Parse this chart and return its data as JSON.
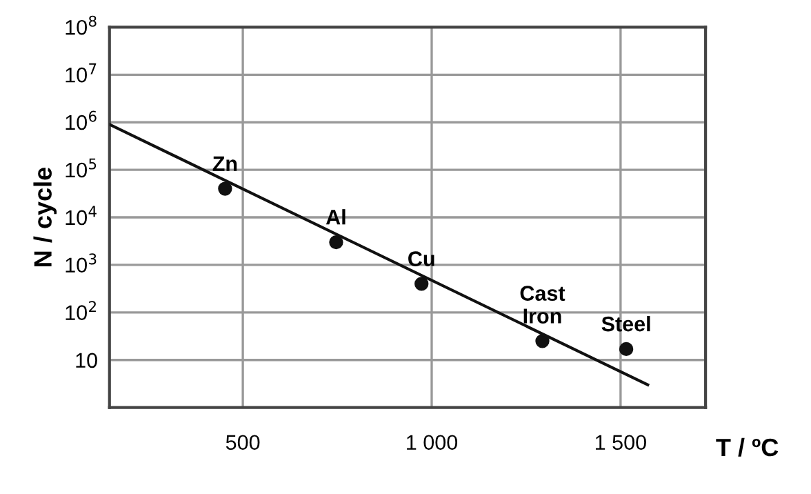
{
  "chart_data": {
    "type": "scatter",
    "xlabel": "T / ºC",
    "ylabel": "N / cycle",
    "x": [
      453,
      747,
      973,
      1293,
      1515
    ],
    "series": [
      {
        "color": "#111111",
        "values": [
          40000,
          3000,
          400,
          25,
          17
        ],
        "marker": "circle"
      },
      {
        "type": "line",
        "color": "#111111",
        "x": [
          147,
          1572
        ],
        "values": [
          900000,
          3
        ],
        "marker": "none",
        "line_style": "solid"
      }
    ],
    "annotations": [
      {
        "text": "Zn",
        "x": 453,
        "y": 40000
      },
      {
        "text": "Al",
        "x": 747,
        "y": 3000
      },
      {
        "text": "Cu",
        "x": 973,
        "y": 400
      },
      {
        "text": "Cast\nIron",
        "x": 1293,
        "y": 25
      },
      {
        "text": "Steel",
        "x": 1515,
        "y": 17
      }
    ],
    "log": "y",
    "xlim": [
      147,
      1725
    ],
    "ylim": [
      1,
      100000000
    ],
    "xticks": [
      500,
      {
        "value": 1000,
        "label": "1 000"
      },
      {
        "value": 1500,
        "label": "1 500"
      }
    ],
    "yticks": [
      {
        "value": 10,
        "label": "10"
      },
      {
        "value": 100,
        "label": "10$^{2}$"
      },
      {
        "value": 1000,
        "label": "10$^{3}$"
      },
      {
        "value": 10000,
        "label": "10$^{4}$"
      },
      {
        "value": 100000,
        "label": "10$^{5}$"
      },
      {
        "value": 1000000,
        "label": "10$^{6}$"
      },
      {
        "value": 10000000,
        "label": "10$^{7}$"
      },
      {
        "value": 100000000,
        "label": "10$^{8}$"
      }
    ],
    "grid": true
  }
}
